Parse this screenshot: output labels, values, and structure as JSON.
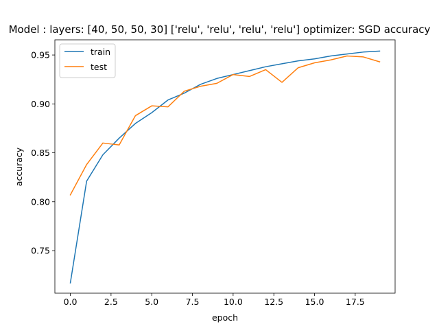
{
  "chart_data": {
    "type": "line",
    "title": "Model : layers: [40, 50, 50, 30] ['relu', 'relu', 'relu', 'relu'] optimizer: SGD accuracy",
    "xlabel": "epoch",
    "ylabel": "accuracy",
    "xlim": [
      -0.95,
      19.95
    ],
    "ylim": [
      0.7065,
      0.9655
    ],
    "xticks": [
      0.0,
      2.5,
      5.0,
      7.5,
      10.0,
      12.5,
      15.0,
      17.5
    ],
    "xtick_labels": [
      "0.0",
      "2.5",
      "5.0",
      "7.5",
      "10.0",
      "12.5",
      "15.0",
      "17.5"
    ],
    "yticks": [
      0.75,
      0.8,
      0.85,
      0.9,
      0.95
    ],
    "ytick_labels": [
      "0.75",
      "0.80",
      "0.85",
      "0.90",
      "0.95"
    ],
    "grid": false,
    "legend_position": "top-left",
    "x": [
      0,
      1,
      2,
      3,
      4,
      5,
      6,
      7,
      8,
      9,
      10,
      11,
      12,
      13,
      14,
      15,
      16,
      17,
      18,
      19
    ],
    "series": [
      {
        "name": "train",
        "color": "#1f77b4",
        "values": [
          0.717,
          0.821,
          0.848,
          0.865,
          0.88,
          0.891,
          0.904,
          0.911,
          0.92,
          0.926,
          0.93,
          0.934,
          0.938,
          0.941,
          0.944,
          0.946,
          0.949,
          0.951,
          0.953,
          0.954
        ]
      },
      {
        "name": "test",
        "color": "#ff7f0e",
        "values": [
          0.807,
          0.838,
          0.86,
          0.858,
          0.888,
          0.898,
          0.897,
          0.913,
          0.918,
          0.921,
          0.93,
          0.928,
          0.935,
          0.922,
          0.937,
          0.942,
          0.945,
          0.949,
          0.948,
          0.943
        ]
      }
    ]
  }
}
